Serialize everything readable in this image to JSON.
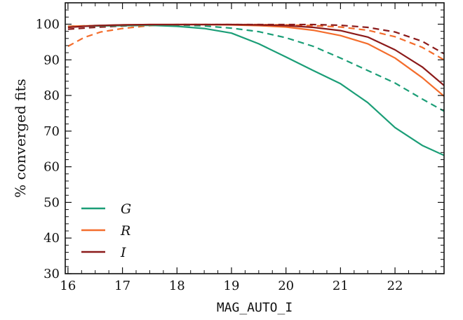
{
  "chart_data": {
    "type": "line",
    "xlabel": "MAG_AUTO_I",
    "ylabel": "% converged fits",
    "xlim": [
      15.95,
      22.9
    ],
    "ylim": [
      30,
      106
    ],
    "xticks": [
      16,
      17,
      18,
      19,
      20,
      21,
      22
    ],
    "yticks": [
      30,
      40,
      50,
      60,
      70,
      80,
      90,
      100
    ],
    "legend_placement": "lower-left",
    "series": [
      {
        "name": "G",
        "color": "#1b9e77",
        "style": "solid",
        "x": [
          16.0,
          16.5,
          17.0,
          17.5,
          18.0,
          18.5,
          19.0,
          19.5,
          20.0,
          20.5,
          21.0,
          21.5,
          22.0,
          22.5,
          22.9
        ],
        "y": [
          99.3,
          99.5,
          99.6,
          99.7,
          99.4,
          98.8,
          97.5,
          94.5,
          90.8,
          87.0,
          83.3,
          78.0,
          71.0,
          66.0,
          63.2
        ]
      },
      {
        "name": "R",
        "color": "#f46d2c",
        "style": "solid",
        "x": [
          16.0,
          16.5,
          17.0,
          17.5,
          18.0,
          18.5,
          19.0,
          19.5,
          20.0,
          20.5,
          21.0,
          21.5,
          22.0,
          22.5,
          22.9
        ],
        "y": [
          99.4,
          99.6,
          99.8,
          99.9,
          99.9,
          99.9,
          99.8,
          99.6,
          99.2,
          98.3,
          96.8,
          94.5,
          90.5,
          85.0,
          79.8
        ]
      },
      {
        "name": "I",
        "color": "#8b1a1a",
        "style": "solid",
        "x": [
          16.0,
          16.5,
          17.0,
          17.5,
          18.0,
          18.5,
          19.0,
          19.5,
          20.0,
          20.5,
          21.0,
          21.5,
          22.0,
          22.5,
          22.9
        ],
        "y": [
          99.1,
          99.6,
          99.8,
          99.9,
          99.9,
          99.9,
          99.9,
          99.8,
          99.6,
          99.1,
          98.2,
          96.4,
          92.8,
          88.0,
          82.8
        ]
      },
      {
        "color": "#1b9e77",
        "style": "dashed",
        "x": [
          16.0,
          16.5,
          17.0,
          17.5,
          18.0,
          18.5,
          19.0,
          19.5,
          20.0,
          20.5,
          21.0,
          21.5,
          22.0,
          22.5,
          22.9
        ],
        "y": [
          99.4,
          99.6,
          99.7,
          99.8,
          99.8,
          99.5,
          98.9,
          97.9,
          96.2,
          93.8,
          90.5,
          87.0,
          83.5,
          79.0,
          75.6
        ]
      },
      {
        "color": "#f46d2c",
        "style": "dashed",
        "x": [
          16.0,
          16.3,
          16.6,
          17.0,
          17.5,
          18.0,
          18.5,
          19.0,
          19.5,
          20.0,
          20.5,
          21.0,
          21.5,
          22.0,
          22.5,
          22.9
        ],
        "y": [
          93.8,
          96.3,
          97.8,
          98.8,
          99.6,
          99.9,
          99.9,
          99.9,
          99.9,
          99.8,
          99.6,
          99.2,
          98.3,
          96.5,
          93.5,
          90.0
        ]
      },
      {
        "color": "#8b1a1a",
        "style": "dashed",
        "x": [
          16.0,
          16.5,
          17.0,
          17.5,
          18.0,
          18.5,
          19.0,
          19.5,
          20.0,
          20.5,
          21.0,
          21.5,
          22.0,
          22.5,
          22.9
        ],
        "y": [
          98.6,
          99.1,
          99.5,
          99.8,
          99.9,
          99.9,
          99.9,
          99.9,
          99.9,
          99.9,
          99.7,
          99.1,
          97.8,
          95.2,
          91.7
        ]
      }
    ]
  }
}
